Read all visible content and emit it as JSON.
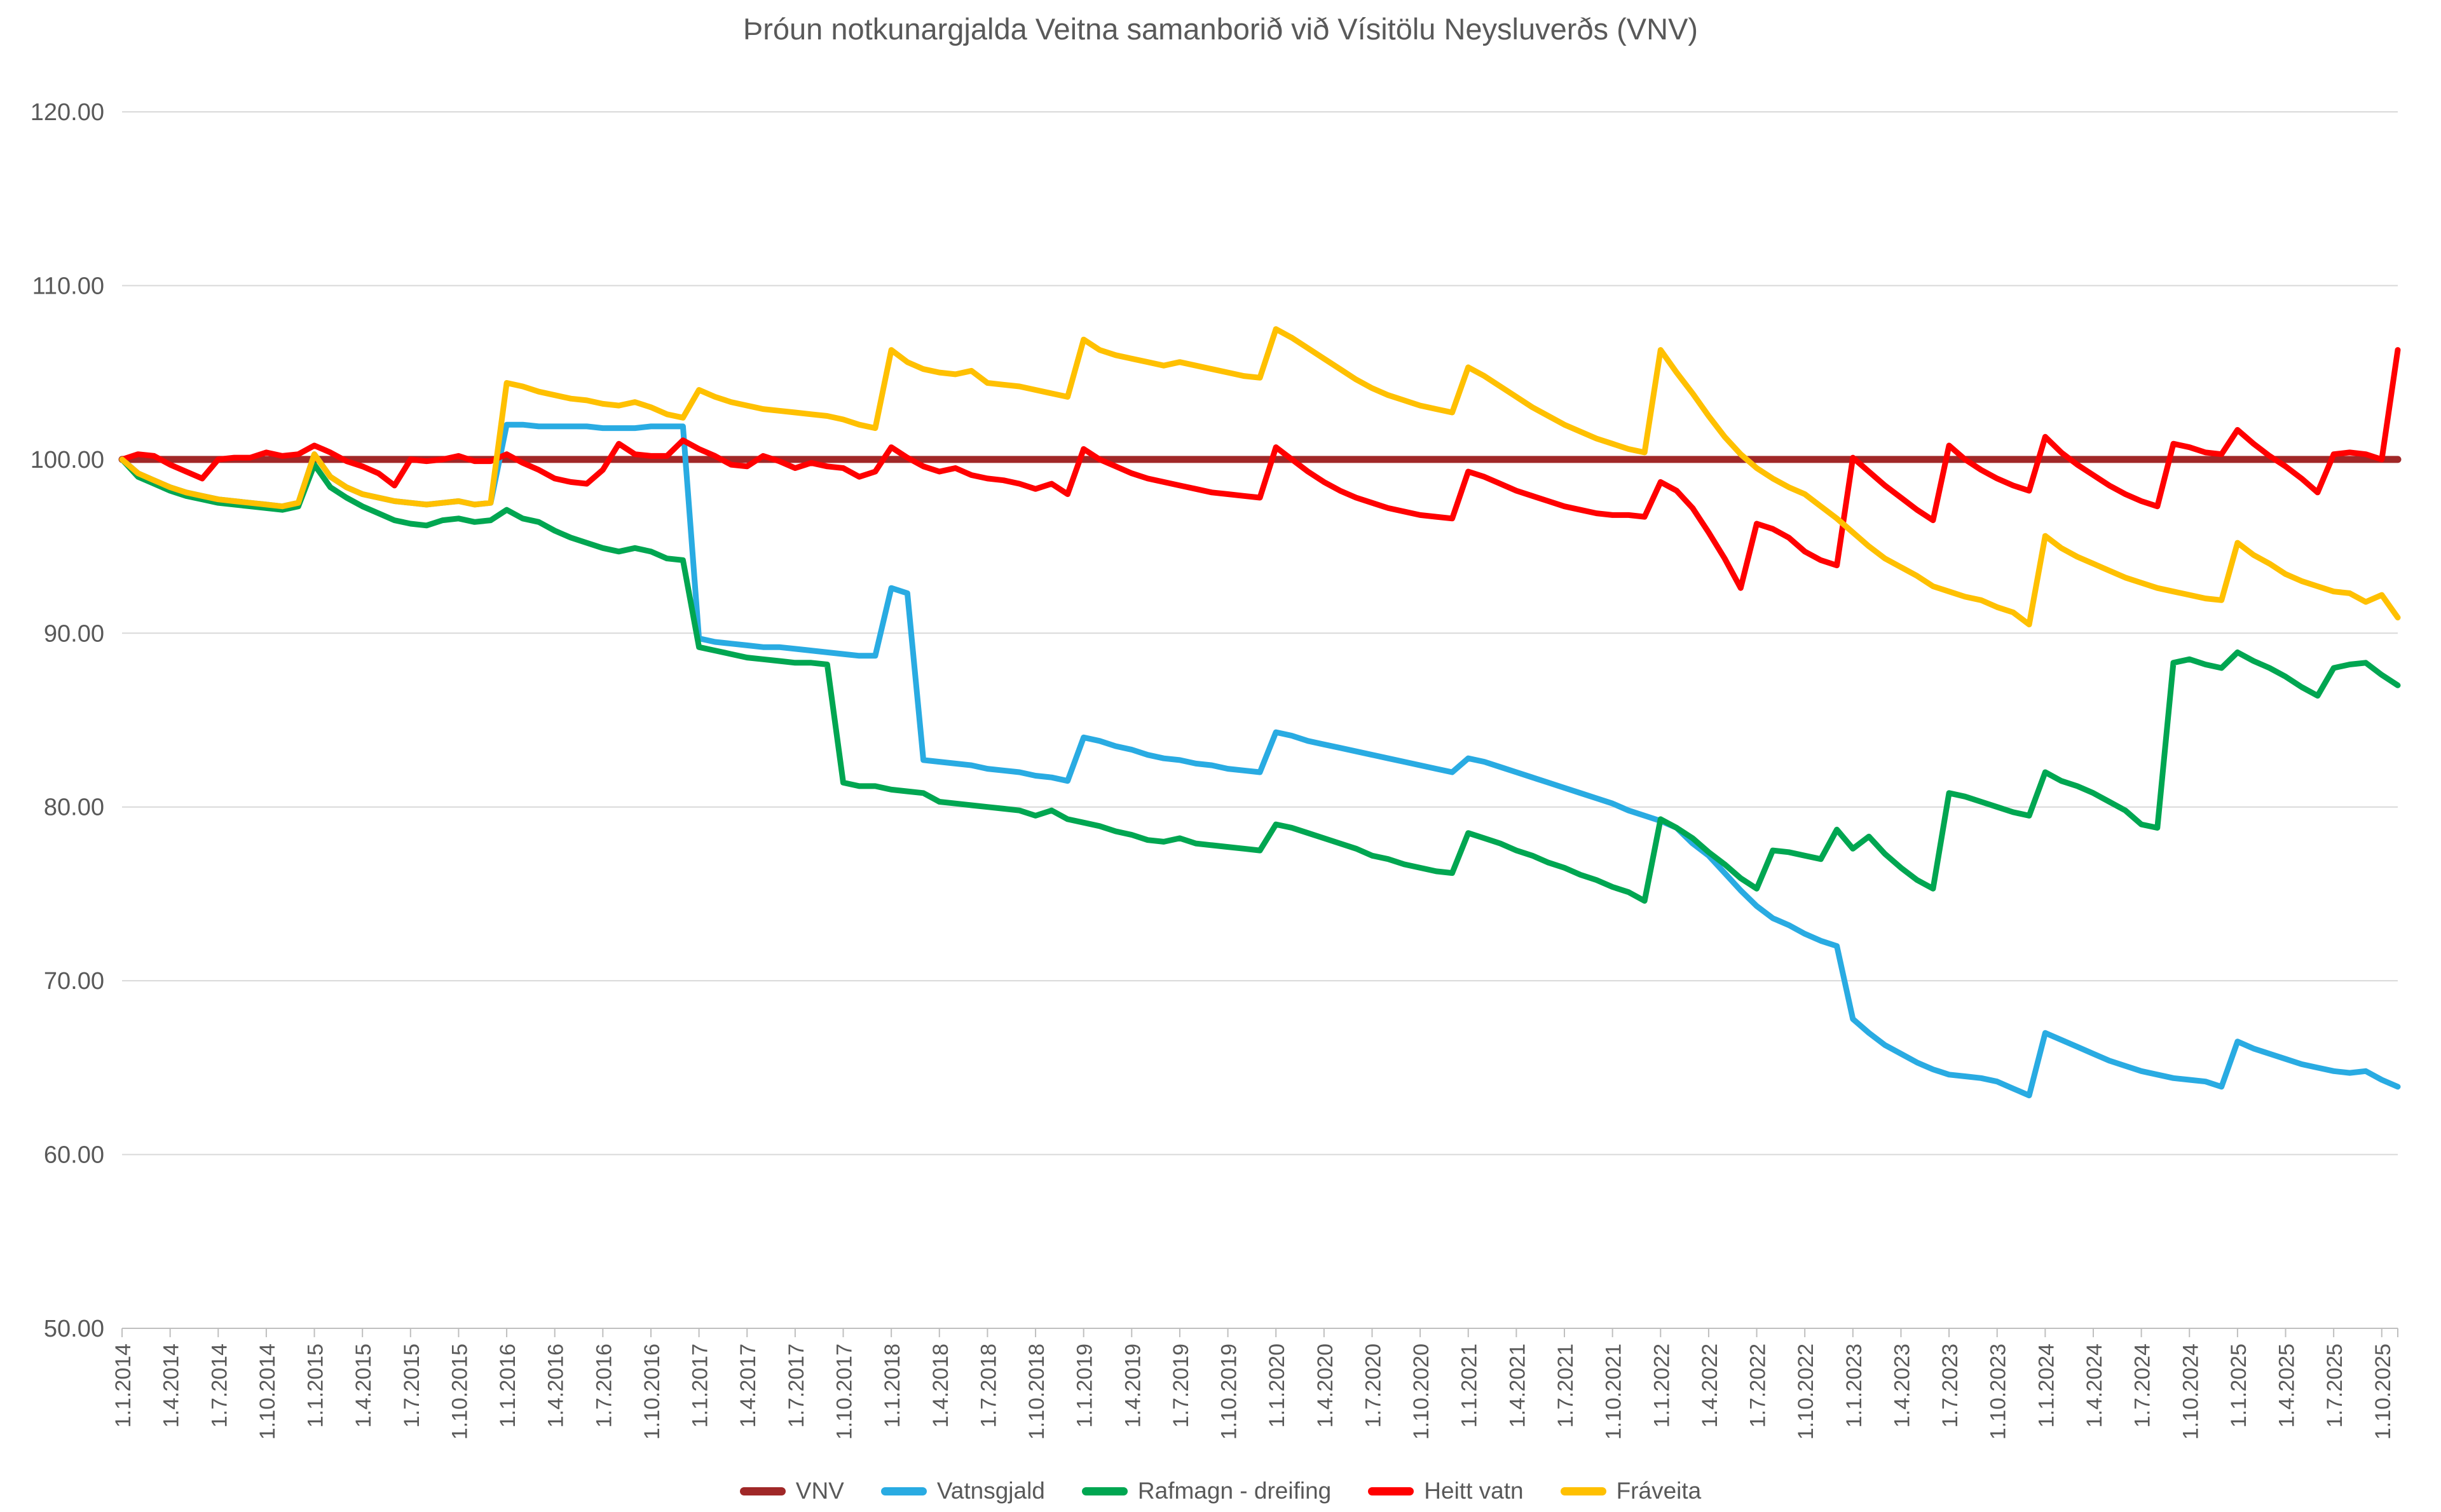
{
  "chart_data": {
    "type": "line",
    "title": "Þróun notkunargjalda Veitna samanborið við Vísitölu Neysluverðs (VNV)",
    "ylabel": "",
    "xlabel": "",
    "ylim": [
      50,
      120
    ],
    "grid": "horizontal",
    "legend_position": "bottom",
    "y_ticks": [
      {
        "value": 120,
        "label": "120.00"
      },
      {
        "value": 110,
        "label": "110.00"
      },
      {
        "value": 100,
        "label": "100.00"
      },
      {
        "value": 90,
        "label": "90.00"
      },
      {
        "value": 80,
        "label": "80.00"
      },
      {
        "value": 70,
        "label": "70.00"
      },
      {
        "value": 60,
        "label": "60.00"
      },
      {
        "value": 50,
        "label": "50.00"
      }
    ],
    "x_unit": "monthly points from 1.1.2014 to 1.11.2025, quarterly tick labels",
    "x_labels": [
      "1.1.2014",
      "1.4.2014",
      "1.7.2014",
      "1.10.2014",
      "1.1.2015",
      "1.4.2015",
      "1.7.2015",
      "1.10.2015",
      "1.1.2016",
      "1.4.2016",
      "1.7.2016",
      "1.10.2016",
      "1.1.2017",
      "1.4.2017",
      "1.7.2017",
      "1.10.2017",
      "1.1.2018",
      "1.4.2018",
      "1.7.2018",
      "1.10.2018",
      "1.1.2019",
      "1.4.2019",
      "1.7.2019",
      "1.10.2019",
      "1.1.2020",
      "1.4.2020",
      "1.7.2020",
      "1.10.2020",
      "1.1.2021",
      "1.4.2021",
      "1.7.2021",
      "1.10.2021",
      "1.1.2022",
      "1.4.2022",
      "1.7.2022",
      "1.10.2022",
      "1.1.2023",
      "1.4.2023",
      "1.7.2023",
      "1.10.2023",
      "1.1.2024",
      "1.4.2024",
      "1.7.2024",
      "1.10.2024",
      "1.1.2025",
      "1.4.2025",
      "1.7.2025",
      "1.10.2025"
    ],
    "series": [
      {
        "name": "VNV",
        "color": "#A02828",
        "width": 11,
        "values": [
          100,
          100,
          100,
          100,
          100,
          100,
          100,
          100,
          100,
          100,
          100,
          100,
          100,
          100,
          100,
          100,
          100,
          100,
          100,
          100,
          100,
          100,
          100,
          100,
          100,
          100,
          100,
          100,
          100,
          100,
          100,
          100,
          100,
          100,
          100,
          100,
          100,
          100,
          100,
          100,
          100,
          100,
          100,
          100,
          100,
          100,
          100,
          100,
          100,
          100,
          100,
          100,
          100,
          100,
          100,
          100,
          100,
          100,
          100,
          100,
          100,
          100,
          100,
          100,
          100,
          100,
          100,
          100,
          100,
          100,
          100,
          100,
          100,
          100,
          100,
          100,
          100,
          100,
          100,
          100,
          100,
          100,
          100,
          100,
          100,
          100,
          100,
          100,
          100,
          100,
          100,
          100,
          100,
          100,
          100,
          100,
          100,
          100,
          100,
          100,
          100,
          100,
          100,
          100,
          100,
          100,
          100,
          100,
          100,
          100,
          100,
          100,
          100,
          100,
          100,
          100,
          100,
          100,
          100,
          100,
          100,
          100,
          100,
          100,
          100,
          100,
          100,
          100,
          100,
          100,
          100,
          100,
          100,
          100,
          100,
          100,
          100,
          100,
          100,
          100,
          100,
          100,
          100
        ]
      },
      {
        "name": "Vatnsgjald",
        "color": "#29ABE2",
        "width": 9,
        "values": [
          100.0,
          99.2,
          98.8,
          98.4,
          98.1,
          97.9,
          97.7,
          97.6,
          97.5,
          97.4,
          97.3,
          97.5,
          100.3,
          99.0,
          98.4,
          98.0,
          97.8,
          97.6,
          97.5,
          97.4,
          97.5,
          97.6,
          97.4,
          97.5,
          102.0,
          102.0,
          101.9,
          101.9,
          101.9,
          101.9,
          101.8,
          101.8,
          101.8,
          101.9,
          101.9,
          101.9,
          89.7,
          89.5,
          89.4,
          89.3,
          89.2,
          89.2,
          89.1,
          89.0,
          88.9,
          88.8,
          88.7,
          88.7,
          92.6,
          92.3,
          82.7,
          82.6,
          82.5,
          82.4,
          82.2,
          82.1,
          82.0,
          81.8,
          81.7,
          81.5,
          84.0,
          83.8,
          83.5,
          83.3,
          83.0,
          82.8,
          82.7,
          82.5,
          82.4,
          82.2,
          82.1,
          82.0,
          84.3,
          84.1,
          83.8,
          83.6,
          83.4,
          83.2,
          83.0,
          82.8,
          82.6,
          82.4,
          82.2,
          82.0,
          82.8,
          82.6,
          82.3,
          82.0,
          81.7,
          81.4,
          81.1,
          80.8,
          80.5,
          80.2,
          79.8,
          79.5,
          79.2,
          78.8,
          77.9,
          77.2,
          76.2,
          75.2,
          74.3,
          73.6,
          73.2,
          72.7,
          72.3,
          72.0,
          67.8,
          67.0,
          66.3,
          65.8,
          65.3,
          64.9,
          64.6,
          64.5,
          64.4,
          64.2,
          63.8,
          63.4,
          67.0,
          66.6,
          66.2,
          65.8,
          65.4,
          65.1,
          64.8,
          64.6,
          64.4,
          64.3,
          64.2,
          63.9,
          66.5,
          66.1,
          65.8,
          65.5,
          65.2,
          65.0,
          64.8,
          64.7,
          64.8,
          64.3,
          63.9
        ]
      },
      {
        "name": "Rafmagn - dreifing",
        "color": "#00A651",
        "width": 9,
        "values": [
          100.0,
          99.0,
          98.6,
          98.2,
          97.9,
          97.7,
          97.5,
          97.4,
          97.3,
          97.2,
          97.1,
          97.3,
          99.7,
          98.4,
          97.8,
          97.3,
          96.9,
          96.5,
          96.3,
          96.2,
          96.5,
          96.6,
          96.4,
          96.5,
          97.1,
          96.6,
          96.4,
          95.9,
          95.5,
          95.2,
          94.9,
          94.7,
          94.9,
          94.7,
          94.3,
          94.2,
          89.2,
          89.0,
          88.8,
          88.6,
          88.5,
          88.4,
          88.3,
          88.3,
          88.2,
          81.4,
          81.2,
          81.2,
          81.0,
          80.9,
          80.8,
          80.3,
          80.2,
          80.1,
          80.0,
          79.9,
          79.8,
          79.5,
          79.8,
          79.3,
          79.1,
          78.9,
          78.6,
          78.4,
          78.1,
          78.0,
          78.2,
          77.9,
          77.8,
          77.7,
          77.6,
          77.5,
          79.0,
          78.8,
          78.5,
          78.2,
          77.9,
          77.6,
          77.2,
          77.0,
          76.7,
          76.5,
          76.3,
          76.2,
          78.5,
          78.2,
          77.9,
          77.5,
          77.2,
          76.8,
          76.5,
          76.1,
          75.8,
          75.4,
          75.1,
          74.6,
          79.3,
          78.8,
          78.2,
          77.4,
          76.7,
          75.9,
          75.3,
          77.5,
          77.4,
          77.2,
          77.0,
          78.7,
          77.6,
          78.3,
          77.3,
          76.5,
          75.8,
          75.3,
          80.8,
          80.6,
          80.3,
          80.0,
          79.7,
          79.5,
          82.0,
          81.5,
          81.2,
          80.8,
          80.3,
          79.8,
          79.0,
          78.8,
          88.3,
          88.5,
          88.2,
          88.0,
          88.9,
          88.4,
          88.0,
          87.5,
          86.9,
          86.4,
          88.0,
          88.2,
          88.3,
          87.6,
          87.0
        ]
      },
      {
        "name": "Heitt vatn",
        "color": "#FF0000",
        "width": 9,
        "values": [
          100.0,
          100.3,
          100.2,
          99.7,
          99.3,
          98.9,
          100.0,
          100.1,
          100.1,
          100.4,
          100.2,
          100.3,
          100.8,
          100.4,
          99.9,
          99.6,
          99.2,
          98.5,
          100.0,
          99.9,
          100.0,
          100.2,
          99.9,
          99.9,
          100.3,
          99.8,
          99.4,
          98.9,
          98.7,
          98.6,
          99.4,
          100.9,
          100.3,
          100.2,
          100.2,
          101.1,
          100.6,
          100.2,
          99.7,
          99.6,
          100.2,
          99.9,
          99.5,
          99.8,
          99.6,
          99.5,
          99.0,
          99.3,
          100.7,
          100.1,
          99.6,
          99.3,
          99.5,
          99.1,
          98.9,
          98.8,
          98.6,
          98.3,
          98.6,
          98.0,
          100.6,
          100.0,
          99.6,
          99.2,
          98.9,
          98.7,
          98.5,
          98.3,
          98.1,
          98.0,
          97.9,
          97.8,
          100.7,
          100.0,
          99.3,
          98.7,
          98.2,
          97.8,
          97.5,
          97.2,
          97.0,
          96.8,
          96.7,
          96.6,
          99.3,
          99.0,
          98.6,
          98.2,
          97.9,
          97.6,
          97.3,
          97.1,
          96.9,
          96.8,
          96.8,
          96.7,
          98.7,
          98.2,
          97.2,
          95.8,
          94.3,
          92.6,
          96.3,
          96.0,
          95.5,
          94.7,
          94.2,
          93.9,
          100.1,
          99.3,
          98.5,
          97.8,
          97.1,
          96.5,
          100.8,
          100.0,
          99.4,
          98.9,
          98.5,
          98.2,
          101.3,
          100.4,
          99.7,
          99.1,
          98.5,
          98.0,
          97.6,
          97.3,
          100.9,
          100.7,
          100.4,
          100.3,
          101.7,
          100.9,
          100.2,
          99.6,
          98.9,
          98.1,
          100.3,
          100.4,
          100.3,
          100.0,
          106.3
        ]
      },
      {
        "name": "Fráveita",
        "color": "#FFC000",
        "width": 9,
        "values": [
          100.0,
          99.2,
          98.8,
          98.4,
          98.1,
          97.9,
          97.7,
          97.6,
          97.5,
          97.4,
          97.3,
          97.5,
          100.3,
          99.0,
          98.4,
          98.0,
          97.8,
          97.6,
          97.5,
          97.4,
          97.5,
          97.6,
          97.4,
          97.5,
          104.4,
          104.2,
          103.9,
          103.7,
          103.5,
          103.4,
          103.2,
          103.1,
          103.3,
          103.0,
          102.6,
          102.4,
          104.0,
          103.6,
          103.3,
          103.1,
          102.9,
          102.8,
          102.7,
          102.6,
          102.5,
          102.3,
          102.0,
          101.8,
          106.3,
          105.6,
          105.2,
          105.0,
          104.9,
          105.1,
          104.4,
          104.3,
          104.2,
          104.0,
          103.8,
          103.6,
          106.9,
          106.3,
          106.0,
          105.8,
          105.6,
          105.4,
          105.6,
          105.4,
          105.2,
          105.0,
          104.8,
          104.7,
          107.5,
          107.0,
          106.4,
          105.8,
          105.2,
          104.6,
          104.1,
          103.7,
          103.4,
          103.1,
          102.9,
          102.7,
          105.3,
          104.8,
          104.2,
          103.6,
          103.0,
          102.5,
          102.0,
          101.6,
          101.2,
          100.9,
          100.6,
          100.4,
          106.3,
          105.0,
          103.8,
          102.5,
          101.3,
          100.3,
          99.5,
          98.9,
          98.4,
          98.0,
          97.3,
          96.6,
          95.8,
          95.0,
          94.3,
          93.8,
          93.3,
          92.7,
          92.4,
          92.1,
          91.9,
          91.5,
          91.2,
          90.5,
          95.6,
          94.9,
          94.4,
          94.0,
          93.6,
          93.2,
          92.9,
          92.6,
          92.4,
          92.2,
          92.0,
          91.9,
          95.2,
          94.5,
          94.0,
          93.4,
          93.0,
          92.7,
          92.4,
          92.3,
          91.8,
          92.2,
          90.9
        ]
      }
    ],
    "colors": {
      "grid": "#D9D9D9",
      "axis": "#BFBFBF",
      "text": "#595959",
      "background": "#FFFFFF"
    }
  }
}
